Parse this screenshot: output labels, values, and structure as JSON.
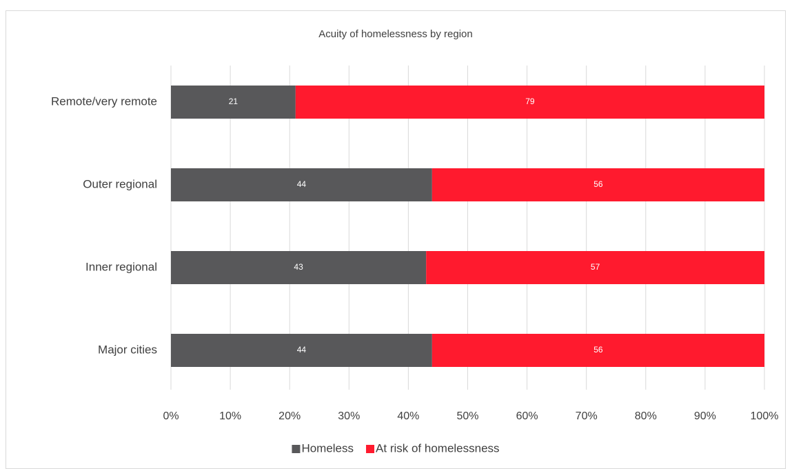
{
  "chart_data": {
    "type": "bar",
    "orientation": "horizontal",
    "stacked": true,
    "title": "Acuity of homelessness by region",
    "categories": [
      "Remote/very remote",
      "Outer regional",
      "Inner regional",
      "Major cities"
    ],
    "series": [
      {
        "name": "Homeless",
        "color": "#58585a",
        "values": [
          21,
          44,
          43,
          44
        ]
      },
      {
        "name": "At risk of homelessness",
        "color": "#ff1a2e",
        "values": [
          79,
          56,
          57,
          56
        ]
      }
    ],
    "xlim": [
      0,
      100
    ],
    "xticks": [
      {
        "value": 0,
        "label": "0%"
      },
      {
        "value": 10,
        "label": "10%"
      },
      {
        "value": 20,
        "label": "20%"
      },
      {
        "value": 30,
        "label": "30%"
      },
      {
        "value": 40,
        "label": "40%"
      },
      {
        "value": 50,
        "label": "50%"
      },
      {
        "value": 60,
        "label": "60%"
      },
      {
        "value": 70,
        "label": "70%"
      },
      {
        "value": 80,
        "label": "80%"
      },
      {
        "value": 90,
        "label": "90%"
      },
      {
        "value": 100,
        "label": "100%"
      }
    ],
    "grid": true,
    "legend": "bottom"
  }
}
